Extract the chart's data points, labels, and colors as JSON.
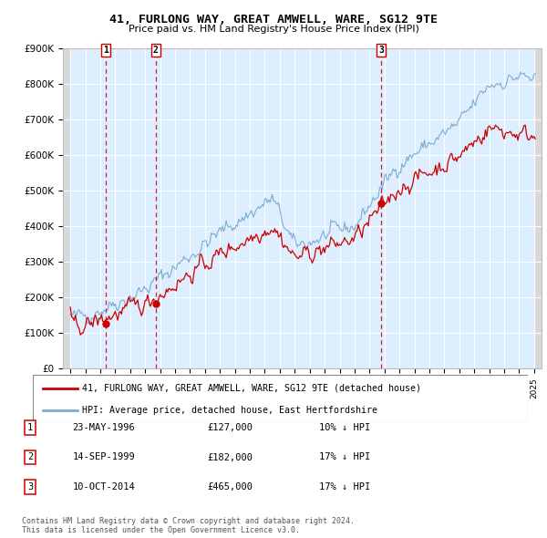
{
  "title": "41, FURLONG WAY, GREAT AMWELL, WARE, SG12 9TE",
  "subtitle": "Price paid vs. HM Land Registry's House Price Index (HPI)",
  "ylim": [
    0,
    900000
  ],
  "yticks": [
    0,
    100000,
    200000,
    300000,
    400000,
    500000,
    600000,
    700000,
    800000,
    900000
  ],
  "ytick_labels": [
    "£0",
    "£100K",
    "£200K",
    "£300K",
    "£400K",
    "£500K",
    "£600K",
    "£700K",
    "£800K",
    "£900K"
  ],
  "xlim_min": 1993.5,
  "xlim_max": 2025.5,
  "transactions": [
    {
      "year": 1996.38,
      "price": 127000,
      "label": "1"
    },
    {
      "year": 1999.71,
      "price": 182000,
      "label": "2"
    },
    {
      "year": 2014.78,
      "price": 465000,
      "label": "3"
    }
  ],
  "transaction_notes": [
    {
      "num": "1",
      "date": "23-MAY-1996",
      "price": "£127,000",
      "note": "10% ↓ HPI"
    },
    {
      "num": "2",
      "date": "14-SEP-1999",
      "price": "£182,000",
      "note": "17% ↓ HPI"
    },
    {
      "num": "3",
      "date": "10-OCT-2014",
      "price": "£465,000",
      "note": "17% ↓ HPI"
    }
  ],
  "legend_entries": [
    "41, FURLONG WAY, GREAT AMWELL, WARE, SG12 9TE (detached house)",
    "HPI: Average price, detached house, East Hertfordshire"
  ],
  "footer": "Contains HM Land Registry data © Crown copyright and database right 2024.\nThis data is licensed under the Open Government Licence v3.0.",
  "line_color_property": "#cc0000",
  "line_color_hpi": "#7aadd4",
  "marker_color": "#cc0000",
  "dashed_line_color": "#cc0000",
  "box_color": "#cc0000",
  "bg_chart": "#ddeeff",
  "bg_hatch": "#d8d8d8"
}
